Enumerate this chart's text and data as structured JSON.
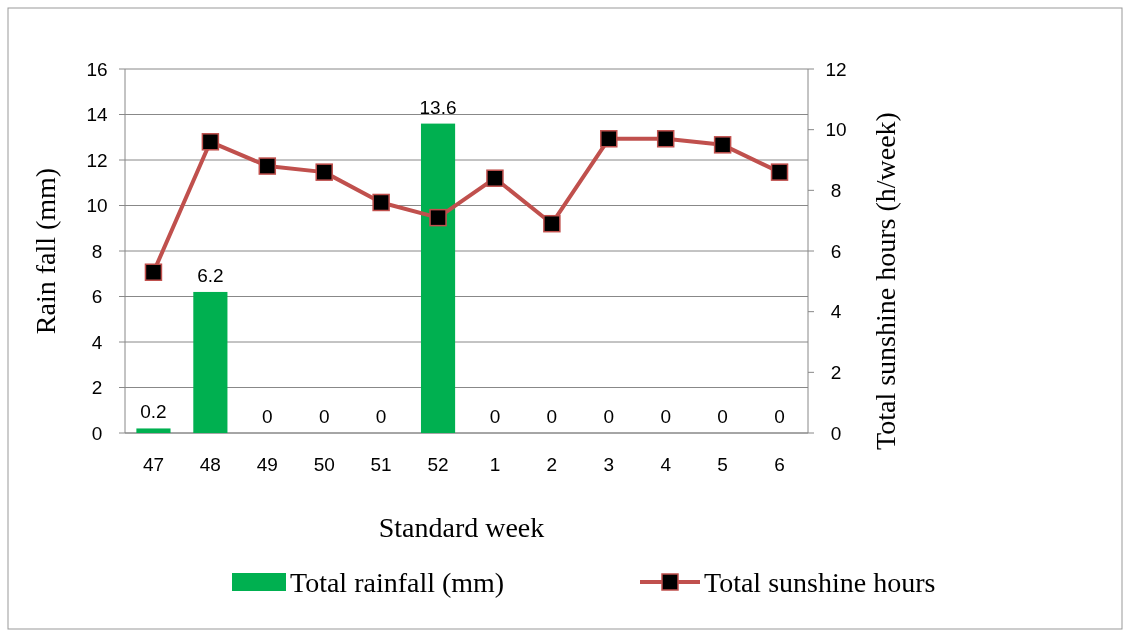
{
  "chart_data": {
    "type": "bar",
    "xlabel": "Standard week",
    "ylabel": "Rain fall (mm)",
    "y2label": "Total sunshine hours (h/week)",
    "categories": [
      "47",
      "48",
      "49",
      "50",
      "51",
      "52",
      "1",
      "2",
      "3",
      "4",
      "5",
      "6"
    ],
    "series": [
      {
        "name": "Total rainfall (mm)",
        "color": "#00b050",
        "values": [
          0.2,
          6.2,
          0,
          0,
          0,
          13.6,
          0,
          0,
          0,
          0,
          0,
          0
        ],
        "value_labels": [
          "0.2",
          "6.2",
          "0",
          "0",
          "0",
          "13.6",
          "0",
          "0",
          "0",
          "0",
          "0",
          "0"
        ]
      },
      {
        "name": "Total sunshine hours",
        "type": "line",
        "axis": "y2",
        "color": "#c0504d",
        "marker": "square",
        "values": [
          5.3,
          9.6,
          8.8,
          8.6,
          7.6,
          7.1,
          8.4,
          6.9,
          9.7,
          9.7,
          9.5,
          8.6
        ]
      }
    ],
    "ylim": [
      0,
      16
    ],
    "yticks": [
      0,
      2,
      4,
      6,
      8,
      10,
      12,
      14,
      16
    ],
    "y2lim": [
      0,
      12
    ],
    "y2ticks": [
      0,
      2,
      4,
      6,
      8,
      10,
      12
    ],
    "grid": "y",
    "legend": "bottom"
  }
}
